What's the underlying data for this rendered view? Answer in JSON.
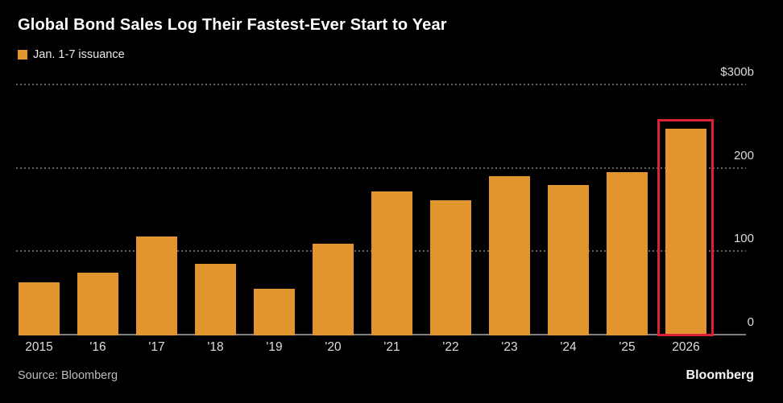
{
  "header": {
    "title": "Global Bond Sales Log Their Fastest-Ever Start to Year",
    "legend": {
      "label": "Jan. 1-7 issuance",
      "swatch_color": "#e2952f"
    }
  },
  "chart_data": {
    "type": "bar",
    "title": "Global Bond Sales Log Their Fastest-Ever Start to Year",
    "series_name": "Jan. 1-7 issuance",
    "categories": [
      "2015",
      "'16",
      "'17",
      "'18",
      "'19",
      "'20",
      "'21",
      "'22",
      "'23",
      "'24",
      "'25",
      "2026"
    ],
    "values": [
      63,
      74,
      118,
      85,
      55,
      109,
      172,
      161,
      190,
      179,
      195,
      247
    ],
    "unit": "$ billions",
    "ylim": [
      0,
      300
    ],
    "yticks": [
      0,
      100,
      200,
      300
    ],
    "ytick_labels": [
      "0",
      "100",
      "200",
      "$300b"
    ],
    "grid": "dotted-horizontal",
    "legend_position": "top-left",
    "ytick_position": "right",
    "bar_color": "#e2952f",
    "highlight": {
      "category": "2026",
      "box_color": "#dc2136"
    }
  },
  "footer": {
    "source": "Source: Bloomberg",
    "brand": "Bloomberg"
  }
}
